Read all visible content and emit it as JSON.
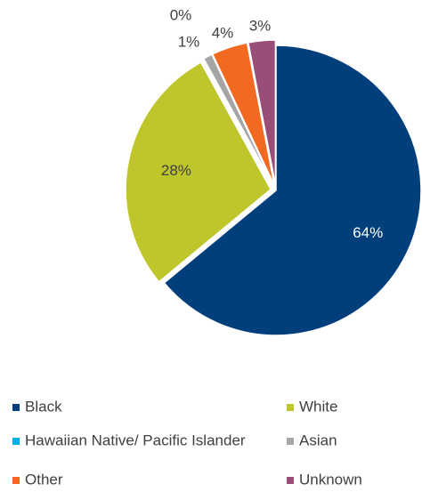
{
  "chart_data": {
    "type": "pie",
    "categories": [
      "Black",
      "White",
      "Hawaiian Native/ Pacific Islander",
      "Asian",
      "Other",
      "Unknown"
    ],
    "values": [
      64,
      28,
      0,
      1,
      4,
      3
    ],
    "value_labels": [
      "64%",
      "28%",
      "0%",
      "1%",
      "4%",
      "3%"
    ],
    "colors": [
      "#003f7c",
      "#bfc62b",
      "#00b0e6",
      "#a5a5a5",
      "#f26a22",
      "#9a4d77"
    ],
    "legend": "bottom"
  }
}
